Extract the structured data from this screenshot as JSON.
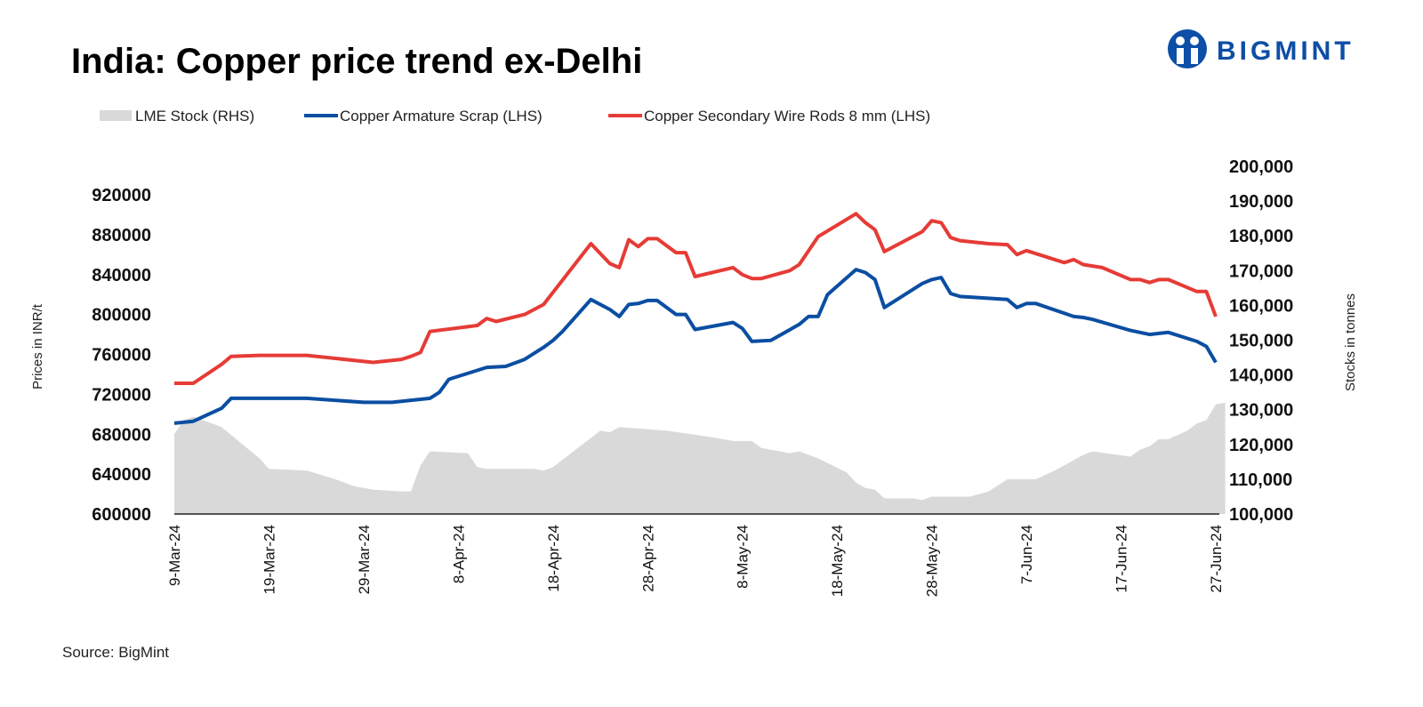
{
  "chart_data": {
    "type": "line",
    "title": "India: Copper price trend ex-Delhi",
    "source": "Source: BigMint",
    "brand": "BIGMINT",
    "x_start": "9-Mar-24",
    "x_unit": "days since 9-Mar-24",
    "xticks": [
      "9-Mar-24",
      "19-Mar-24",
      "29-Mar-24",
      "8-Apr-24",
      "18-Apr-24",
      "28-Apr-24",
      "8-May-24",
      "18-May-24",
      "28-May-24",
      "7-Jun-24",
      "17-Jun-24",
      "27-Jun-24"
    ],
    "xlim": [
      0,
      110
    ],
    "ylabel_left": "Prices in INR/t",
    "ylabel_right": "Stocks in tonnes",
    "ylim_left": [
      600000,
      920000
    ],
    "ylim_right": [
      100000,
      200000
    ],
    "yticks_left": [
      "600000",
      "640000",
      "680000",
      "720000",
      "760000",
      "800000",
      "840000",
      "880000",
      "920000"
    ],
    "yticks_right": [
      "100,000",
      "110,000",
      "120,000",
      "130,000",
      "140,000",
      "150,000",
      "160,000",
      "170,000",
      "180,000",
      "190,000",
      "200,000"
    ],
    "legend_position": "top-left",
    "colors": {
      "stock": "#d9d9d9",
      "scrap": "#0b4ea2",
      "rods": "#e63b36"
    },
    "series": [
      {
        "name": "LME Stock (RHS)",
        "type": "area",
        "axis": "right",
        "points": [
          [
            0,
            123000
          ],
          [
            1,
            127000
          ],
          [
            2,
            128000
          ],
          [
            4,
            126000
          ],
          [
            5,
            125000
          ],
          [
            9,
            116000
          ],
          [
            10,
            113000
          ],
          [
            14,
            112500
          ],
          [
            17,
            110000
          ],
          [
            19,
            108000
          ],
          [
            21,
            107000
          ],
          [
            24,
            106500
          ],
          [
            25,
            106500
          ],
          [
            26,
            114000
          ],
          [
            27,
            118000
          ],
          [
            31,
            117500
          ],
          [
            32,
            113500
          ],
          [
            33,
            113000
          ],
          [
            38,
            113000
          ],
          [
            39,
            112500
          ],
          [
            40,
            113500
          ],
          [
            45,
            124000
          ],
          [
            46,
            123500
          ],
          [
            47,
            125000
          ],
          [
            52,
            124000
          ],
          [
            57,
            122000
          ],
          [
            59,
            121000
          ],
          [
            61,
            121000
          ],
          [
            62,
            119000
          ],
          [
            65,
            117500
          ],
          [
            66,
            118000
          ],
          [
            68,
            116000
          ],
          [
            71,
            112000
          ],
          [
            72,
            109000
          ],
          [
            73,
            107500
          ],
          [
            74,
            107000
          ],
          [
            75,
            104500
          ],
          [
            78,
            104500
          ],
          [
            79,
            104000
          ],
          [
            80,
            105000
          ],
          [
            84,
            105000
          ],
          [
            86,
            106500
          ],
          [
            88,
            110000
          ],
          [
            91,
            110000
          ],
          [
            93,
            112500
          ],
          [
            96,
            117000
          ],
          [
            97,
            118000
          ],
          [
            101,
            116500
          ],
          [
            102,
            118500
          ],
          [
            103,
            119500
          ],
          [
            104,
            121500
          ],
          [
            105,
            121500
          ],
          [
            107,
            124000
          ],
          [
            108,
            126000
          ],
          [
            109,
            127000
          ],
          [
            110,
            131500
          ],
          [
            111,
            132000
          ]
        ]
      },
      {
        "name": "Copper Armature Scrap (LHS)",
        "type": "line",
        "axis": "left",
        "points": [
          [
            0,
            691000
          ],
          [
            2,
            693000
          ],
          [
            5,
            706000
          ],
          [
            6,
            716000
          ],
          [
            14,
            716000
          ],
          [
            20,
            712000
          ],
          [
            23,
            712000
          ],
          [
            27,
            716000
          ],
          [
            28,
            722000
          ],
          [
            29,
            735000
          ],
          [
            33,
            747000
          ],
          [
            35,
            748000
          ],
          [
            37,
            755000
          ],
          [
            39,
            767000
          ],
          [
            40,
            774000
          ],
          [
            41,
            783000
          ],
          [
            44,
            815000
          ],
          [
            46,
            805000
          ],
          [
            47,
            798000
          ],
          [
            48,
            810000
          ],
          [
            49,
            811000
          ],
          [
            50,
            814000
          ],
          [
            51,
            814000
          ],
          [
            53,
            800000
          ],
          [
            54,
            800000
          ],
          [
            55,
            785000
          ],
          [
            59,
            792000
          ],
          [
            60,
            786000
          ],
          [
            61,
            773000
          ],
          [
            63,
            774000
          ],
          [
            66,
            790000
          ],
          [
            67,
            798000
          ],
          [
            68,
            798000
          ],
          [
            69,
            820000
          ],
          [
            72,
            845000
          ],
          [
            73,
            842000
          ],
          [
            74,
            835000
          ],
          [
            75,
            807000
          ],
          [
            79,
            831000
          ],
          [
            80,
            835000
          ],
          [
            81,
            837000
          ],
          [
            82,
            821000
          ],
          [
            83,
            818000
          ],
          [
            88,
            815000
          ],
          [
            89,
            807000
          ],
          [
            90,
            811000
          ],
          [
            91,
            811000
          ],
          [
            95,
            798000
          ],
          [
            96,
            797000
          ],
          [
            97,
            795000
          ],
          [
            101,
            784000
          ],
          [
            102,
            782000
          ],
          [
            103,
            780000
          ],
          [
            104,
            781000
          ],
          [
            105,
            782000
          ],
          [
            108,
            773000
          ],
          [
            109,
            768000
          ],
          [
            110,
            752000
          ]
        ]
      },
      {
        "name": "Copper Secondary Wire Rods 8 mm (LHS)",
        "type": "line",
        "axis": "left",
        "points": [
          [
            0,
            731000
          ],
          [
            2,
            731000
          ],
          [
            5,
            750000
          ],
          [
            6,
            758000
          ],
          [
            9,
            759000
          ],
          [
            14,
            759000
          ],
          [
            20,
            753000
          ],
          [
            21,
            752000
          ],
          [
            24,
            755000
          ],
          [
            25,
            758000
          ],
          [
            26,
            762000
          ],
          [
            27,
            783000
          ],
          [
            32,
            789000
          ],
          [
            33,
            796000
          ],
          [
            34,
            793000
          ],
          [
            37,
            800000
          ],
          [
            39,
            810000
          ],
          [
            44,
            871000
          ],
          [
            46,
            851000
          ],
          [
            47,
            847000
          ],
          [
            48,
            875000
          ],
          [
            49,
            868000
          ],
          [
            50,
            876000
          ],
          [
            51,
            876000
          ],
          [
            53,
            862000
          ],
          [
            54,
            862000
          ],
          [
            55,
            838000
          ],
          [
            59,
            847000
          ],
          [
            60,
            840000
          ],
          [
            61,
            836000
          ],
          [
            62,
            836000
          ],
          [
            65,
            844000
          ],
          [
            66,
            850000
          ],
          [
            68,
            878000
          ],
          [
            72,
            901000
          ],
          [
            73,
            892000
          ],
          [
            74,
            885000
          ],
          [
            75,
            863000
          ],
          [
            79,
            883000
          ],
          [
            80,
            894000
          ],
          [
            81,
            892000
          ],
          [
            82,
            877000
          ],
          [
            83,
            874000
          ],
          [
            86,
            871000
          ],
          [
            88,
            870000
          ],
          [
            89,
            860000
          ],
          [
            90,
            864000
          ],
          [
            94,
            852000
          ],
          [
            95,
            855000
          ],
          [
            96,
            850000
          ],
          [
            98,
            847000
          ],
          [
            101,
            835000
          ],
          [
            102,
            835000
          ],
          [
            103,
            832000
          ],
          [
            104,
            835000
          ],
          [
            105,
            835000
          ],
          [
            108,
            823000
          ],
          [
            109,
            823000
          ],
          [
            110,
            798000
          ]
        ]
      }
    ]
  }
}
